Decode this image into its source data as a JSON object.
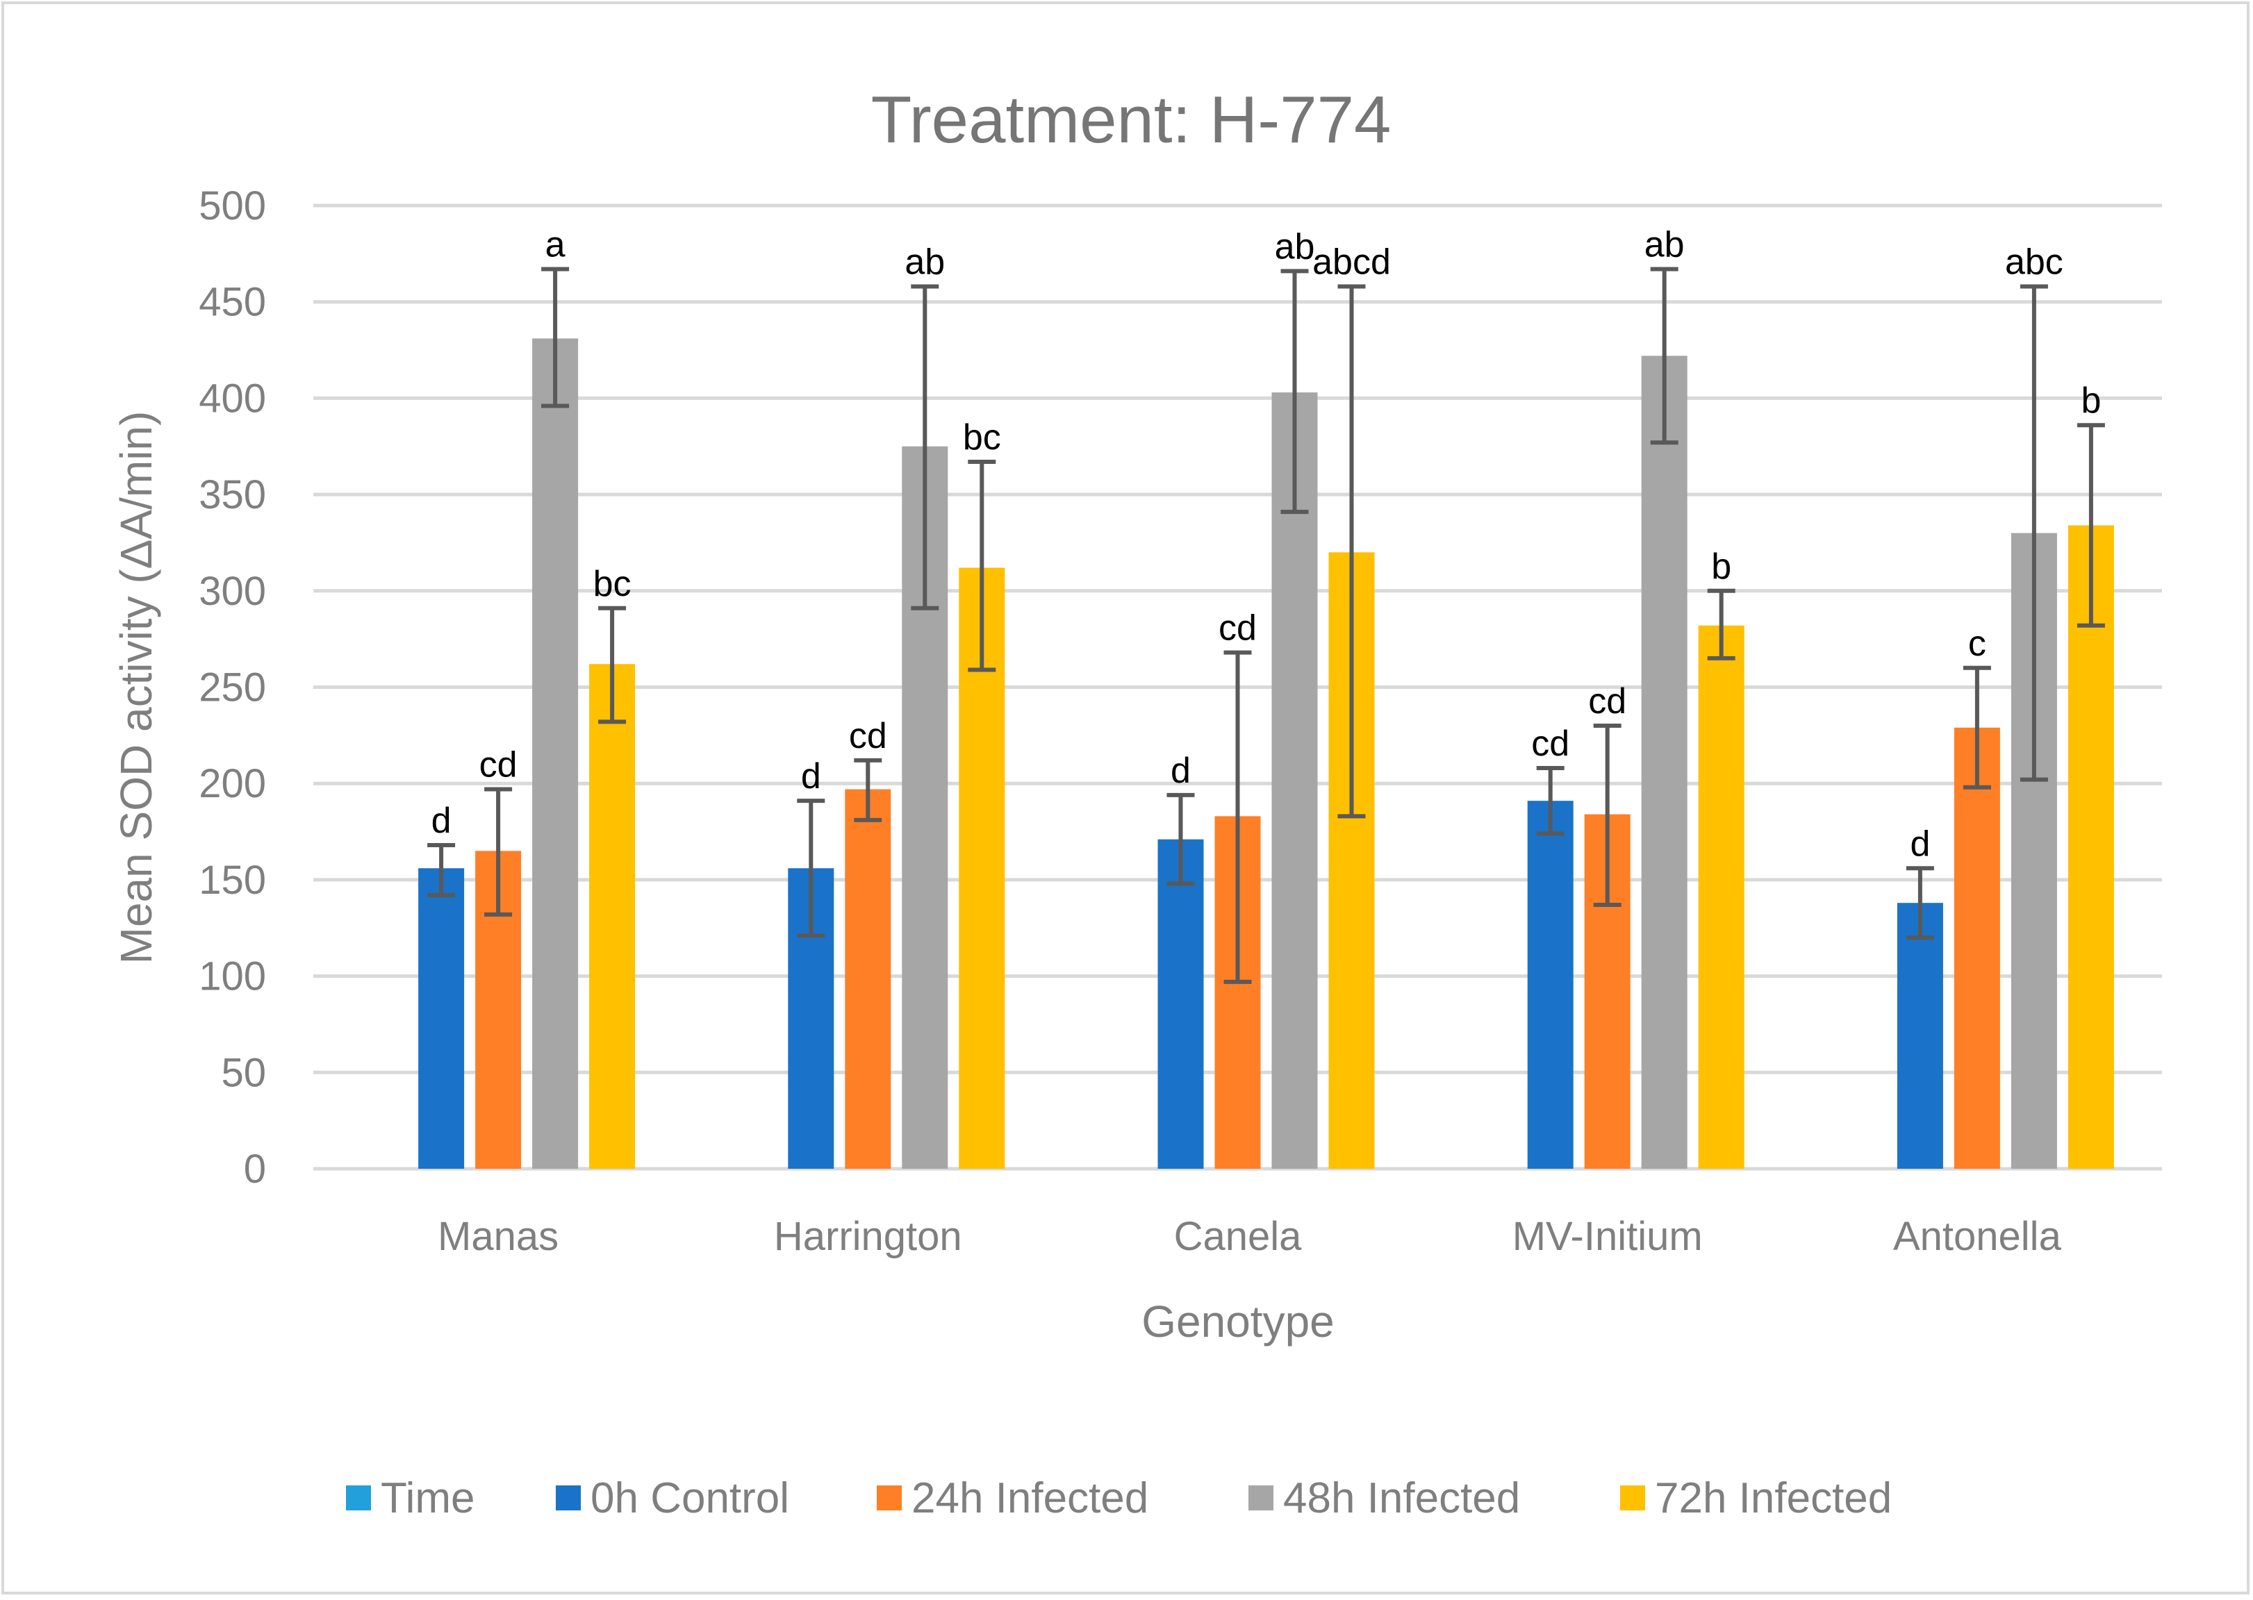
{
  "chart_data": {
    "type": "bar",
    "title": "Treatment: H-774",
    "xlabel": "Genotype",
    "ylabel": "Mean SOD activity (ΔA/min)",
    "ylim": [
      0,
      500
    ],
    "yticks": [
      0,
      50,
      100,
      150,
      200,
      250,
      300,
      350,
      400,
      450,
      500
    ],
    "grid": true,
    "legend_position": "bottom",
    "categories": [
      "Manas",
      "Harrington",
      "Canela",
      "MV-Initium",
      "Antonella"
    ],
    "series": [
      {
        "name": "Time",
        "color": "#21a0dc",
        "values": [
          null,
          null,
          null,
          null,
          null
        ]
      },
      {
        "name": "0h Control",
        "color": "#1a73c8",
        "values": [
          156,
          156,
          171,
          191,
          138
        ],
        "error_low": [
          142,
          121,
          148,
          174,
          120
        ],
        "error_high": [
          168,
          191,
          194,
          208,
          156
        ],
        "letters": [
          "d",
          "d",
          "d",
          "cd",
          "d"
        ]
      },
      {
        "name": "24h Infected",
        "color": "#ff7f27",
        "values": [
          165,
          197,
          183,
          184,
          229
        ],
        "error_low": [
          132,
          181,
          97,
          137,
          198
        ],
        "error_high": [
          197,
          212,
          268,
          230,
          260
        ],
        "letters": [
          "cd",
          "cd",
          "cd",
          "cd",
          "c"
        ]
      },
      {
        "name": "48h Infected",
        "color": "#a6a6a6",
        "values": [
          431,
          375,
          403,
          422,
          330
        ],
        "error_low": [
          396,
          291,
          341,
          377,
          202
        ],
        "error_high": [
          467,
          458,
          466,
          467,
          458
        ],
        "letters": [
          "a",
          "ab",
          "ab",
          "ab",
          "abc"
        ]
      },
      {
        "name": "72h Infected",
        "color": "#ffc000",
        "values": [
          262,
          312,
          320,
          282,
          334
        ],
        "error_low": [
          232,
          259,
          183,
          265,
          282
        ],
        "error_high": [
          291,
          367,
          458,
          300,
          386
        ],
        "letters": [
          "bc",
          "bc",
          "abcd",
          "b",
          "b"
        ]
      }
    ]
  }
}
